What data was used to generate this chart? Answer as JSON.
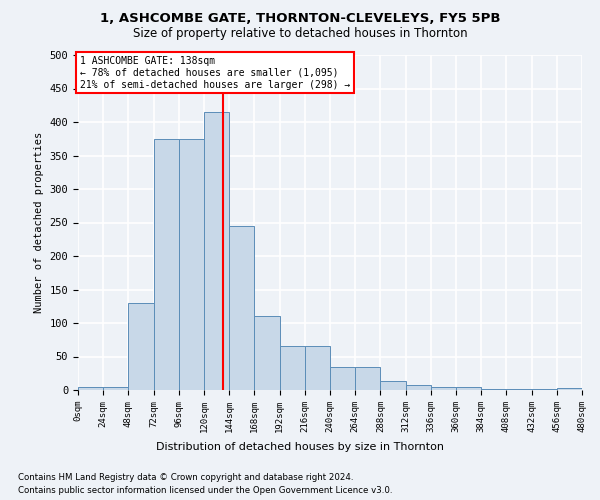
{
  "title1": "1, ASHCOMBE GATE, THORNTON-CLEVELEYS, FY5 5PB",
  "title2": "Size of property relative to detached houses in Thornton",
  "xlabel": "Distribution of detached houses by size in Thornton",
  "ylabel": "Number of detached properties",
  "footnote1": "Contains HM Land Registry data © Crown copyright and database right 2024.",
  "footnote2": "Contains public sector information licensed under the Open Government Licence v3.0.",
  "annotation_line1": "1 ASHCOMBE GATE: 138sqm",
  "annotation_line2": "← 78% of detached houses are smaller (1,095)",
  "annotation_line3": "21% of semi-detached houses are larger (298) →",
  "bar_color": "#c8d8e8",
  "bar_edge_color": "#5b8db8",
  "property_line_x": 138,
  "bins": [
    0,
    24,
    48,
    72,
    96,
    120,
    144,
    168,
    192,
    216,
    240,
    264,
    288,
    312,
    336,
    360,
    384,
    408,
    432,
    456,
    480
  ],
  "counts": [
    4,
    5,
    130,
    375,
    375,
    415,
    245,
    110,
    65,
    65,
    35,
    35,
    14,
    8,
    5,
    5,
    1,
    1,
    1,
    3
  ],
  "ylim": [
    0,
    500
  ],
  "yticks": [
    0,
    50,
    100,
    150,
    200,
    250,
    300,
    350,
    400,
    450,
    500
  ],
  "background_color": "#eef2f7",
  "grid_color": "#ffffff"
}
